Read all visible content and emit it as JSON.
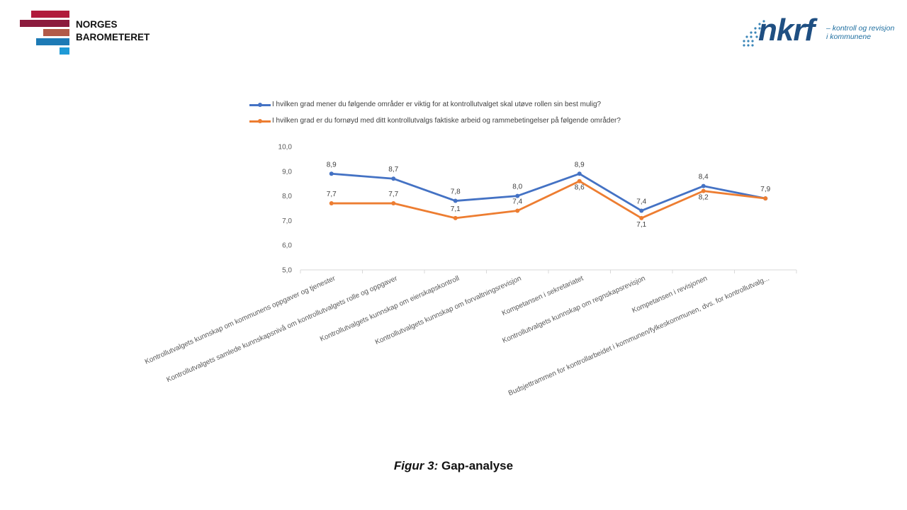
{
  "brand": {
    "left_logo_line1": "NORGES",
    "left_logo_line2": "BAROMETERET",
    "right_logo_word": "nkrf",
    "right_logo_tag_line1": "– kontroll og revisjon",
    "right_logo_tag_line2": "i kommunene"
  },
  "colors": {
    "series1": "#4472c4",
    "series2": "#ed7d31",
    "axis": "#d9d9d9",
    "text": "#595959"
  },
  "caption": {
    "prefix": "Figur 3:",
    "text": "Gap-analyse"
  },
  "chart_data": {
    "type": "line",
    "title": "",
    "xlabel": "",
    "ylabel": "",
    "ylim": [
      5.0,
      10.0
    ],
    "y_ticks": [
      "5,0",
      "6,0",
      "7,0",
      "8,0",
      "9,0",
      "10,0"
    ],
    "grid": false,
    "legend_position": "top",
    "categories": [
      "Kontrollutvalgets kunnskap om kommunens oppgaver og tjenester",
      "Kontrollutvalgets samlede kunnskapsnivå om kontrollutvalgets rolle og oppgaver",
      "Kontrollutvalgets kunnskap om eierskapskontroll",
      "Kontrollutvalgets kunnskap om forvaltningsrevisjon",
      "Kompetansen i sekretariatet",
      "Kontrollutvalgets kunnskap om regnskapsrevisjon",
      "Kompetansen i revisjonen",
      "Budsjettrammen for kontrollarbeidet i kommunen/fylkeskommunen, dvs. for kontrollutvalg..."
    ],
    "series": [
      {
        "name": "I hvilken grad mener du følgende områder er viktig for at kontrollutvalget skal utøve rollen sin best mulig?",
        "values": [
          8.9,
          8.7,
          7.8,
          8.0,
          8.9,
          7.4,
          8.4,
          7.9
        ],
        "labels": [
          "8,9",
          "8,7",
          "7,8",
          "8,0",
          "8,9",
          "7,4",
          "8,4",
          "7,9"
        ]
      },
      {
        "name": "I hvilken grad er du fornøyd med ditt kontrollutvalgs faktiske arbeid og rammebetingelser på følgende områder?",
        "values": [
          7.7,
          7.7,
          7.1,
          7.4,
          8.6,
          7.1,
          8.2,
          7.9
        ],
        "labels": [
          "7,7",
          "7,7",
          "7,1",
          "7,4",
          "8,6",
          "7,1",
          "8,2",
          "7,9"
        ]
      }
    ]
  }
}
